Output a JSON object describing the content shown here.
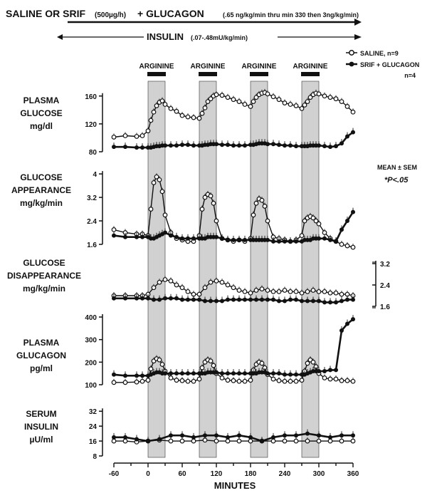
{
  "header": {
    "top_main": "SALINE OR SRIF",
    "top_dose1": "(500µg/h)",
    "top_plus": "+ GLUCAGON",
    "top_dose2": "(.65 ng/kg/min thru min 330 then 3ng/kg/min)",
    "insulin_label": "INSULIN",
    "insulin_dose": "(.07-.48mU/kg/min)"
  },
  "arginine_label": "ARGININE",
  "legend": {
    "saline": "SALINE, n=9",
    "srif": "SRIF + GLUCAGON",
    "srif_n": "n=4",
    "stats1": "MEAN ± SEM",
    "stats2": "*P<.05"
  },
  "colors": {
    "ink": "#111111",
    "shade": "#c9c9c9"
  },
  "chart_data": {
    "type": "line",
    "x_label": "MINUTES",
    "x_ticks": [
      -60,
      0,
      60,
      120,
      180,
      240,
      300,
      360
    ],
    "x_range": [
      -60,
      360
    ],
    "arginine_intervals": [
      [
        0,
        30
      ],
      [
        90,
        120
      ],
      [
        180,
        210
      ],
      [
        270,
        300
      ]
    ],
    "panels": [
      {
        "id": "glucose",
        "label": [
          "PLASMA",
          "GLUCOSE",
          "mg/dl"
        ],
        "y_ticks": [
          80,
          120,
          160
        ],
        "y_range": [
          80,
          170
        ],
        "x": [
          -60,
          -40,
          -20,
          -10,
          0,
          5,
          10,
          15,
          20,
          25,
          30,
          40,
          50,
          60,
          70,
          80,
          90,
          95,
          100,
          105,
          110,
          115,
          120,
          130,
          140,
          150,
          160,
          170,
          180,
          185,
          190,
          195,
          200,
          205,
          210,
          220,
          230,
          240,
          250,
          260,
          270,
          275,
          280,
          285,
          290,
          295,
          300,
          310,
          320,
          330,
          340,
          350,
          360
        ],
        "series": [
          {
            "name": "SALINE, n=9",
            "values": [
              101,
              103,
              102,
              103,
              110,
              125,
              137,
              146,
              151,
              153,
              148,
              142,
              138,
              132,
              130,
              129,
              128,
              135,
              143,
              152,
              156,
              160,
              162,
              161,
              158,
              155,
              152,
              148,
              145,
              152,
              158,
              162,
              164,
              165,
              163,
              159,
              155,
              150,
              148,
              146,
              142,
              147,
              152,
              158,
              162,
              164,
              163,
              160,
              158,
              156,
              152,
              145,
              137
            ]
          },
          {
            "name": "SRIF + GLUCAGON",
            "values": [
              87,
              87,
              86,
              86,
              86,
              86,
              87,
              88,
              88,
              89,
              89,
              89,
              89,
              90,
              90,
              89,
              89,
              89,
              90,
              90,
              91,
              91,
              91,
              90,
              90,
              89,
              89,
              89,
              90,
              90,
              91,
              92,
              92,
              92,
              91,
              91,
              90,
              89,
              89,
              88,
              88,
              88,
              88,
              89,
              89,
              89,
              89,
              88,
              87,
              88,
              92,
              102,
              108
            ]
          }
        ]
      },
      {
        "id": "appearance",
        "label": [
          "GLUCOSE",
          "APPEARANCE",
          "mg/kg/min"
        ],
        "y_ticks": [
          1.6,
          2.4,
          3.2,
          4.0
        ],
        "y_range": [
          1.6,
          4.1
        ],
        "x": [
          -60,
          -40,
          -20,
          -10,
          0,
          5,
          10,
          15,
          20,
          25,
          30,
          40,
          50,
          60,
          70,
          80,
          90,
          95,
          100,
          105,
          110,
          115,
          120,
          130,
          140,
          150,
          160,
          170,
          180,
          185,
          190,
          195,
          200,
          205,
          210,
          220,
          230,
          240,
          250,
          260,
          270,
          275,
          280,
          285,
          290,
          295,
          300,
          310,
          320,
          330,
          340,
          350,
          360
        ],
        "series": [
          {
            "name": "SALINE, n=9",
            "values": [
              2.1,
              2.0,
              1.95,
              1.95,
              1.9,
              2.8,
              3.7,
              3.9,
              3.8,
              3.4,
              2.6,
              2.0,
              1.8,
              1.75,
              1.7,
              1.7,
              1.9,
              2.8,
              3.2,
              3.3,
              3.25,
              3.0,
              2.4,
              1.8,
              1.75,
              1.7,
              1.75,
              1.7,
              1.8,
              2.6,
              3.0,
              3.15,
              3.1,
              2.9,
              2.4,
              1.85,
              1.8,
              1.75,
              1.7,
              1.75,
              1.9,
              2.4,
              2.5,
              2.55,
              2.5,
              2.4,
              2.3,
              2.0,
              1.8,
              1.7,
              1.6,
              1.55,
              1.5
            ]
          },
          {
            "name": "SRIF + GLUCAGON",
            "values": [
              1.9,
              1.85,
              1.85,
              1.85,
              1.85,
              1.8,
              1.8,
              1.85,
              1.9,
              1.95,
              2.0,
              1.9,
              1.85,
              1.8,
              1.8,
              1.8,
              1.8,
              1.8,
              1.8,
              1.85,
              1.85,
              1.85,
              1.85,
              1.8,
              1.75,
              1.75,
              1.75,
              1.75,
              1.75,
              1.75,
              1.75,
              1.75,
              1.75,
              1.75,
              1.75,
              1.7,
              1.7,
              1.7,
              1.7,
              1.7,
              1.7,
              1.75,
              1.75,
              1.75,
              1.8,
              1.8,
              1.8,
              1.8,
              1.75,
              1.7,
              2.1,
              2.4,
              2.7
            ]
          }
        ]
      },
      {
        "id": "disappearance",
        "label": [
          "GLUCOSE",
          "DISAPPEARANCE",
          "mg/kg/min"
        ],
        "y_ticks": [
          1.6,
          2.4,
          3.2
        ],
        "y_range": [
          1.6,
          3.2
        ],
        "x": [
          -60,
          -40,
          -20,
          -10,
          0,
          10,
          20,
          30,
          40,
          50,
          60,
          70,
          80,
          90,
          100,
          110,
          120,
          130,
          140,
          150,
          160,
          170,
          180,
          190,
          200,
          210,
          220,
          230,
          240,
          250,
          260,
          270,
          280,
          290,
          300,
          310,
          320,
          330,
          340,
          350,
          360
        ],
        "series": [
          {
            "name": "SALINE, n=9",
            "values": [
              2.0,
              2.0,
              2.0,
              2.0,
              2.05,
              2.3,
              2.5,
              2.6,
              2.55,
              2.4,
              2.3,
              2.15,
              2.05,
              2.05,
              2.3,
              2.5,
              2.55,
              2.5,
              2.4,
              2.3,
              2.2,
              2.15,
              2.1,
              2.2,
              2.25,
              2.2,
              2.15,
              2.15,
              2.2,
              2.15,
              2.15,
              2.1,
              2.15,
              2.2,
              2.15,
              2.15,
              2.1,
              2.1,
              2.05,
              2.05,
              2.0
            ]
          },
          {
            "name": "SRIF + GLUCAGON",
            "values": [
              1.9,
              1.9,
              1.9,
              1.9,
              1.9,
              1.85,
              1.85,
              1.9,
              1.9,
              1.9,
              1.85,
              1.85,
              1.85,
              1.85,
              1.8,
              1.8,
              1.8,
              1.8,
              1.85,
              1.85,
              1.85,
              1.85,
              1.85,
              1.85,
              1.85,
              1.85,
              1.85,
              1.8,
              1.8,
              1.85,
              1.85,
              1.8,
              1.8,
              1.8,
              1.8,
              1.75,
              1.75,
              1.75,
              1.8,
              1.85,
              1.85
            ]
          }
        ]
      },
      {
        "id": "glucagon",
        "label": [
          "PLASMA",
          "GLUCAGON",
          "pg/ml"
        ],
        "y_ticks": [
          100,
          200,
          300,
          400
        ],
        "y_range": [
          100,
          400
        ],
        "x": [
          -60,
          -40,
          -20,
          -10,
          0,
          5,
          10,
          15,
          20,
          25,
          30,
          40,
          50,
          60,
          70,
          80,
          90,
          95,
          100,
          105,
          110,
          115,
          120,
          130,
          140,
          150,
          160,
          170,
          180,
          185,
          190,
          195,
          200,
          205,
          210,
          220,
          230,
          240,
          250,
          260,
          270,
          275,
          280,
          285,
          290,
          295,
          300,
          310,
          320,
          330,
          340,
          350,
          360
        ],
        "series": [
          {
            "name": "SALINE, n=9",
            "values": [
              110,
              110,
              112,
              115,
              120,
              170,
              205,
              215,
              210,
              190,
              160,
              130,
              120,
              118,
              115,
              115,
              125,
              175,
              200,
              210,
              205,
              185,
              150,
              130,
              120,
              118,
              115,
              115,
              120,
              165,
              190,
              200,
              195,
              175,
              145,
              125,
              118,
              115,
              115,
              115,
              120,
              160,
              195,
              210,
              200,
              180,
              150,
              130,
              125,
              125,
              118,
              118,
              115
            ]
          },
          {
            "name": "SRIF + GLUCAGON",
            "values": [
              145,
              140,
              140,
              140,
              140,
              145,
              150,
              155,
              155,
              150,
              150,
              150,
              150,
              150,
              150,
              150,
              150,
              150,
              150,
              155,
              155,
              155,
              155,
              150,
              150,
              150,
              150,
              150,
              150,
              150,
              150,
              155,
              155,
              155,
              150,
              150,
              150,
              145,
              145,
              145,
              145,
              145,
              150,
              155,
              160,
              160,
              160,
              160,
              165,
              165,
              340,
              370,
              390
            ]
          }
        ]
      },
      {
        "id": "insulin",
        "label": [
          "SERUM",
          "INSULIN",
          "µU/ml"
        ],
        "y_ticks": [
          8,
          16,
          24,
          32
        ],
        "y_range": [
          8,
          34
        ],
        "x": [
          -60,
          -40,
          -20,
          0,
          20,
          40,
          60,
          80,
          100,
          120,
          140,
          160,
          180,
          200,
          220,
          240,
          260,
          280,
          300,
          320,
          340,
          360
        ],
        "series": [
          {
            "name": "SALINE, n=9",
            "values": [
              16,
              16,
              15.5,
              16,
              16.5,
              16,
              16,
              16,
              16.5,
              16,
              16,
              16,
              16,
              16,
              16,
              16,
              16,
              16,
              16,
              16,
              16,
              16
            ]
          },
          {
            "name": "SRIF + GLUCAGON",
            "values": [
              18,
              18,
              17,
              16,
              17,
              19,
              19,
              18,
              19,
              19,
              18,
              19,
              18,
              16,
              18,
              19,
              19,
              20,
              19,
              18,
              19,
              19
            ]
          }
        ]
      }
    ]
  }
}
